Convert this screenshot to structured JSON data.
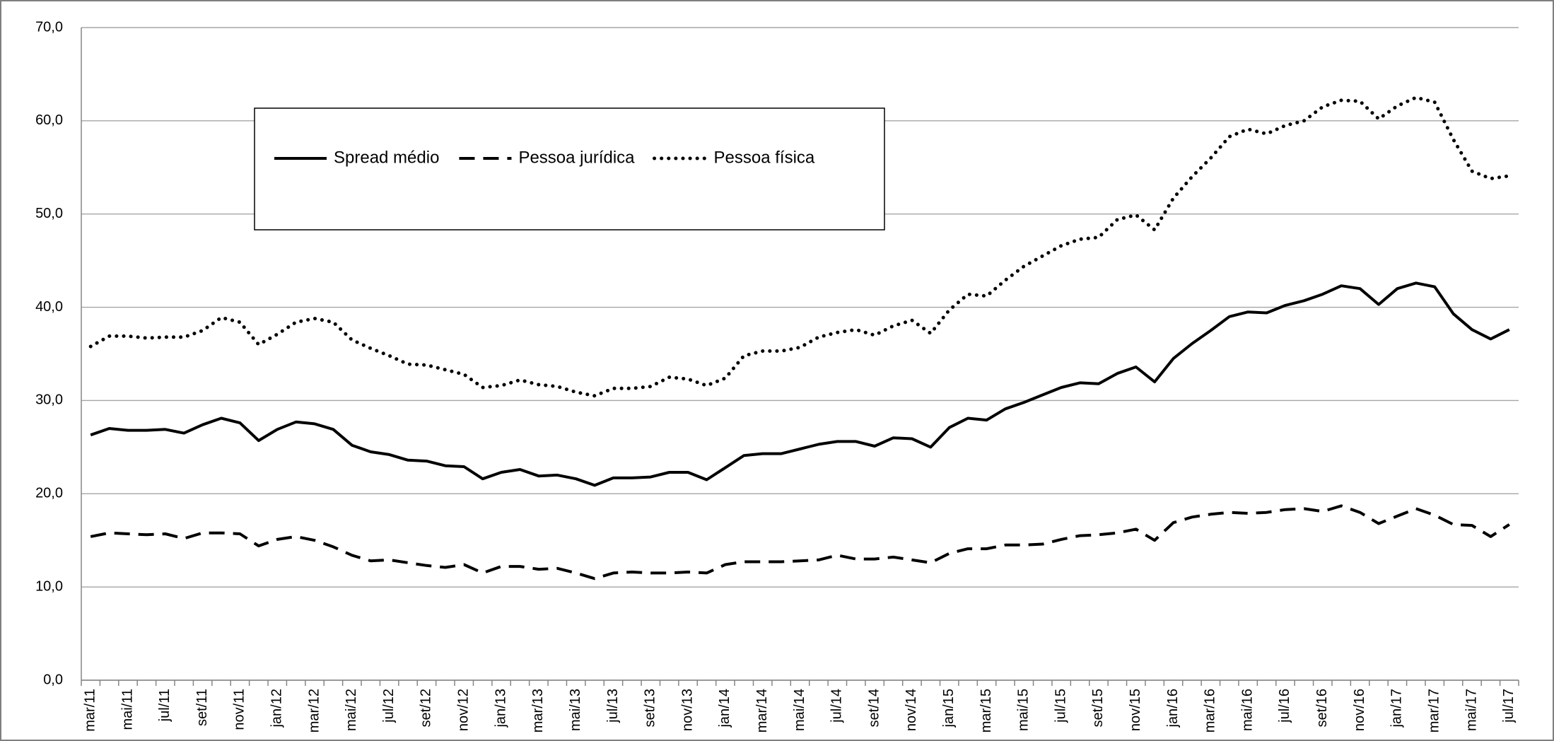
{
  "chart_data": {
    "type": "line",
    "categories": [
      "mar/11",
      null,
      "mai/11",
      null,
      "jul/11",
      null,
      "set/11",
      null,
      "nov/11",
      null,
      "jan/12",
      null,
      "mar/12",
      null,
      "mai/12",
      null,
      "jul/12",
      null,
      "set/12",
      null,
      "nov/12",
      null,
      "jan/13",
      null,
      "mar/13",
      null,
      "mai/13",
      null,
      "jul/13",
      null,
      "set/13",
      null,
      "nov/13",
      null,
      "jan/14",
      null,
      "mar/14",
      null,
      "mai/14",
      null,
      "jul/14",
      null,
      "set/14",
      null,
      "nov/14",
      null,
      "jan/15",
      null,
      "mar/15",
      null,
      "mai/15",
      null,
      "jul/15",
      null,
      "set/15",
      null,
      "nov/15",
      null,
      "jan/16",
      null,
      "mar/16",
      null,
      "mai/16",
      null,
      "jul/16",
      null,
      "set/16",
      null,
      "nov/16",
      null,
      "jan/17",
      null,
      "mar/17",
      null,
      "mai/17",
      null,
      "jul/17"
    ],
    "series": [
      {
        "name": "Spread médio",
        "color": "#000000",
        "style": "solid",
        "values": [
          26.3,
          27.0,
          26.8,
          26.8,
          26.9,
          26.5,
          27.4,
          28.1,
          27.6,
          25.7,
          26.9,
          27.7,
          27.5,
          26.9,
          25.2,
          24.5,
          24.2,
          23.6,
          23.5,
          23.0,
          22.9,
          21.6,
          22.3,
          22.6,
          21.9,
          22.0,
          21.6,
          20.9,
          21.7,
          21.7,
          21.8,
          22.3,
          22.3,
          21.5,
          22.8,
          24.1,
          24.3,
          24.3,
          24.8,
          25.3,
          25.6,
          25.6,
          25.1,
          26.0,
          25.9,
          25.0,
          27.1,
          28.1,
          27.9,
          29.1,
          29.8,
          30.6,
          31.4,
          31.9,
          31.8,
          32.9,
          33.6,
          32.0,
          34.5,
          36.1,
          37.5,
          39.0,
          39.5,
          39.4,
          40.2,
          40.7,
          41.4,
          42.3,
          42.0,
          40.3,
          42.0,
          42.6,
          42.2,
          39.3,
          37.6,
          36.6,
          37.6
        ]
      },
      {
        "name": "Pessoa jurídica",
        "color": "#000000",
        "style": "dashed",
        "values": [
          15.4,
          15.8,
          15.7,
          15.6,
          15.7,
          15.2,
          15.8,
          15.8,
          15.7,
          14.4,
          15.1,
          15.4,
          15.0,
          14.3,
          13.4,
          12.8,
          12.9,
          12.6,
          12.3,
          12.1,
          12.4,
          11.5,
          12.2,
          12.2,
          11.9,
          12.0,
          11.5,
          10.9,
          11.5,
          11.6,
          11.5,
          11.5,
          11.6,
          11.5,
          12.4,
          12.7,
          12.7,
          12.7,
          12.8,
          12.9,
          13.4,
          13.0,
          13.0,
          13.2,
          12.9,
          12.6,
          13.6,
          14.1,
          14.1,
          14.5,
          14.5,
          14.6,
          15.1,
          15.5,
          15.6,
          15.8,
          16.2,
          15.0,
          16.9,
          17.5,
          17.8,
          18.0,
          17.9,
          18.0,
          18.3,
          18.4,
          18.1,
          18.7,
          18.0,
          16.8,
          17.6,
          18.4,
          17.7,
          16.7,
          16.6,
          15.4,
          16.7
        ]
      },
      {
        "name": "Pessoa física",
        "color": "#000000",
        "style": "dotted",
        "values": [
          35.8,
          36.9,
          36.9,
          36.7,
          36.8,
          36.8,
          37.5,
          38.9,
          38.4,
          36.0,
          37.1,
          38.4,
          38.8,
          38.4,
          36.5,
          35.6,
          34.8,
          33.9,
          33.8,
          33.3,
          32.8,
          31.4,
          31.6,
          32.2,
          31.7,
          31.5,
          30.9,
          30.5,
          31.3,
          31.3,
          31.5,
          32.5,
          32.3,
          31.6,
          32.4,
          34.8,
          35.3,
          35.3,
          35.7,
          36.8,
          37.3,
          37.6,
          37.0,
          38.0,
          38.6,
          37.2,
          39.7,
          41.4,
          41.2,
          42.9,
          44.4,
          45.5,
          46.6,
          47.3,
          47.5,
          49.4,
          49.9,
          48.3,
          51.7,
          54.0,
          56.0,
          58.3,
          59.1,
          58.6,
          59.5,
          60.0,
          61.5,
          62.2,
          62.1,
          60.2,
          61.6,
          62.5,
          62.0,
          58.0,
          54.6,
          53.8,
          54.1
        ]
      }
    ],
    "ylim": [
      0,
      70
    ],
    "yticks": [
      {
        "value": 0,
        "label": "0,0"
      },
      {
        "value": 10,
        "label": "10,0"
      },
      {
        "value": 20,
        "label": "20,0"
      },
      {
        "value": 30,
        "label": "30,0"
      },
      {
        "value": 40,
        "label": "40,0"
      },
      {
        "value": 50,
        "label": "50,0"
      },
      {
        "value": 60,
        "label": "60,0"
      },
      {
        "value": 70,
        "label": "70,0"
      }
    ],
    "grid": true,
    "legend": "upper left"
  }
}
